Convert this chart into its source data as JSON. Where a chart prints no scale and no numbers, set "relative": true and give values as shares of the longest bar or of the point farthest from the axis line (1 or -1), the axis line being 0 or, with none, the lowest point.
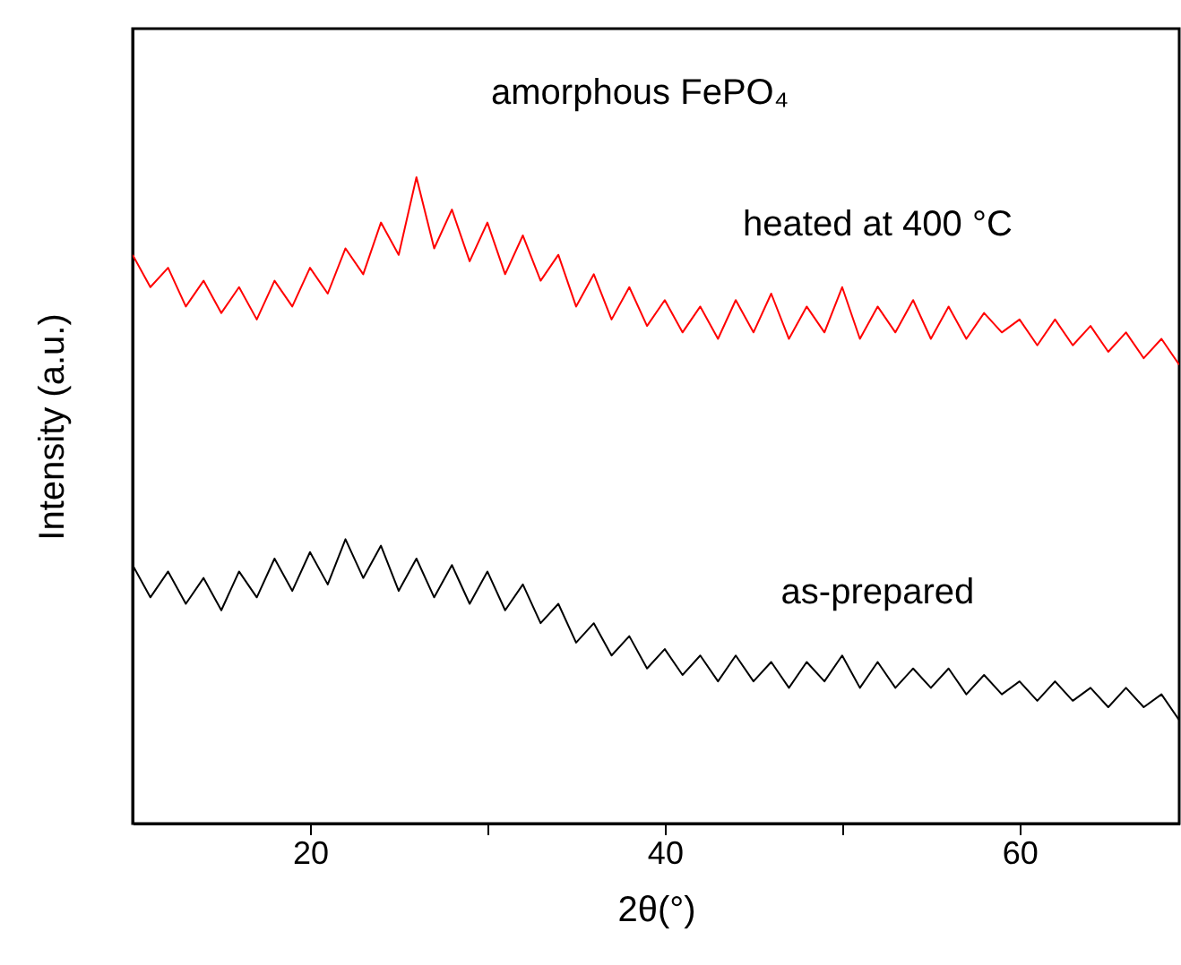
{
  "chart_data": {
    "type": "line",
    "relative": true,
    "title": "amorphous FePO₄",
    "xlabel": "2θ(°)",
    "ylabel": "Intensity (a.u.)",
    "x": [
      10,
      11,
      12,
      13,
      14,
      15,
      16,
      17,
      18,
      19,
      20,
      21,
      22,
      23,
      24,
      25,
      26,
      27,
      28,
      29,
      30,
      31,
      32,
      33,
      34,
      35,
      36,
      37,
      38,
      39,
      40,
      41,
      42,
      43,
      44,
      45,
      46,
      47,
      48,
      49,
      50,
      51,
      52,
      53,
      54,
      55,
      56,
      57,
      58,
      59,
      60,
      61,
      62,
      63,
      64,
      65,
      66,
      67,
      68,
      69
    ],
    "xlim": [
      10,
      69
    ],
    "xticks": [
      20,
      {
        "value": 30,
        "label": null
      },
      40,
      {
        "value": 50,
        "label": null
      },
      60
    ],
    "grid": false,
    "series": [
      {
        "name": "heated at 400 °C",
        "color": "#ff0000",
        "values": [
          0.88,
          0.83,
          0.86,
          0.8,
          0.84,
          0.79,
          0.83,
          0.78,
          0.84,
          0.8,
          0.86,
          0.82,
          0.89,
          0.85,
          0.93,
          0.88,
          1.0,
          0.89,
          0.95,
          0.87,
          0.93,
          0.85,
          0.91,
          0.84,
          0.88,
          0.8,
          0.85,
          0.78,
          0.83,
          0.77,
          0.81,
          0.76,
          0.8,
          0.75,
          0.81,
          0.76,
          0.82,
          0.75,
          0.8,
          0.76,
          0.83,
          0.75,
          0.8,
          0.76,
          0.81,
          0.75,
          0.8,
          0.75,
          0.79,
          0.76,
          0.78,
          0.74,
          0.78,
          0.74,
          0.77,
          0.73,
          0.76,
          0.72,
          0.75,
          0.71
        ]
      },
      {
        "name": "as-prepared",
        "color": "#000000",
        "values": [
          0.4,
          0.35,
          0.39,
          0.34,
          0.38,
          0.33,
          0.39,
          0.35,
          0.41,
          0.36,
          0.42,
          0.37,
          0.44,
          0.38,
          0.43,
          0.36,
          0.41,
          0.35,
          0.4,
          0.34,
          0.39,
          0.33,
          0.37,
          0.31,
          0.34,
          0.28,
          0.31,
          0.26,
          0.29,
          0.24,
          0.27,
          0.23,
          0.26,
          0.22,
          0.26,
          0.22,
          0.25,
          0.21,
          0.25,
          0.22,
          0.26,
          0.21,
          0.25,
          0.21,
          0.24,
          0.21,
          0.24,
          0.2,
          0.23,
          0.2,
          0.22,
          0.19,
          0.22,
          0.19,
          0.21,
          0.18,
          0.21,
          0.18,
          0.2,
          0.16
        ]
      }
    ]
  }
}
